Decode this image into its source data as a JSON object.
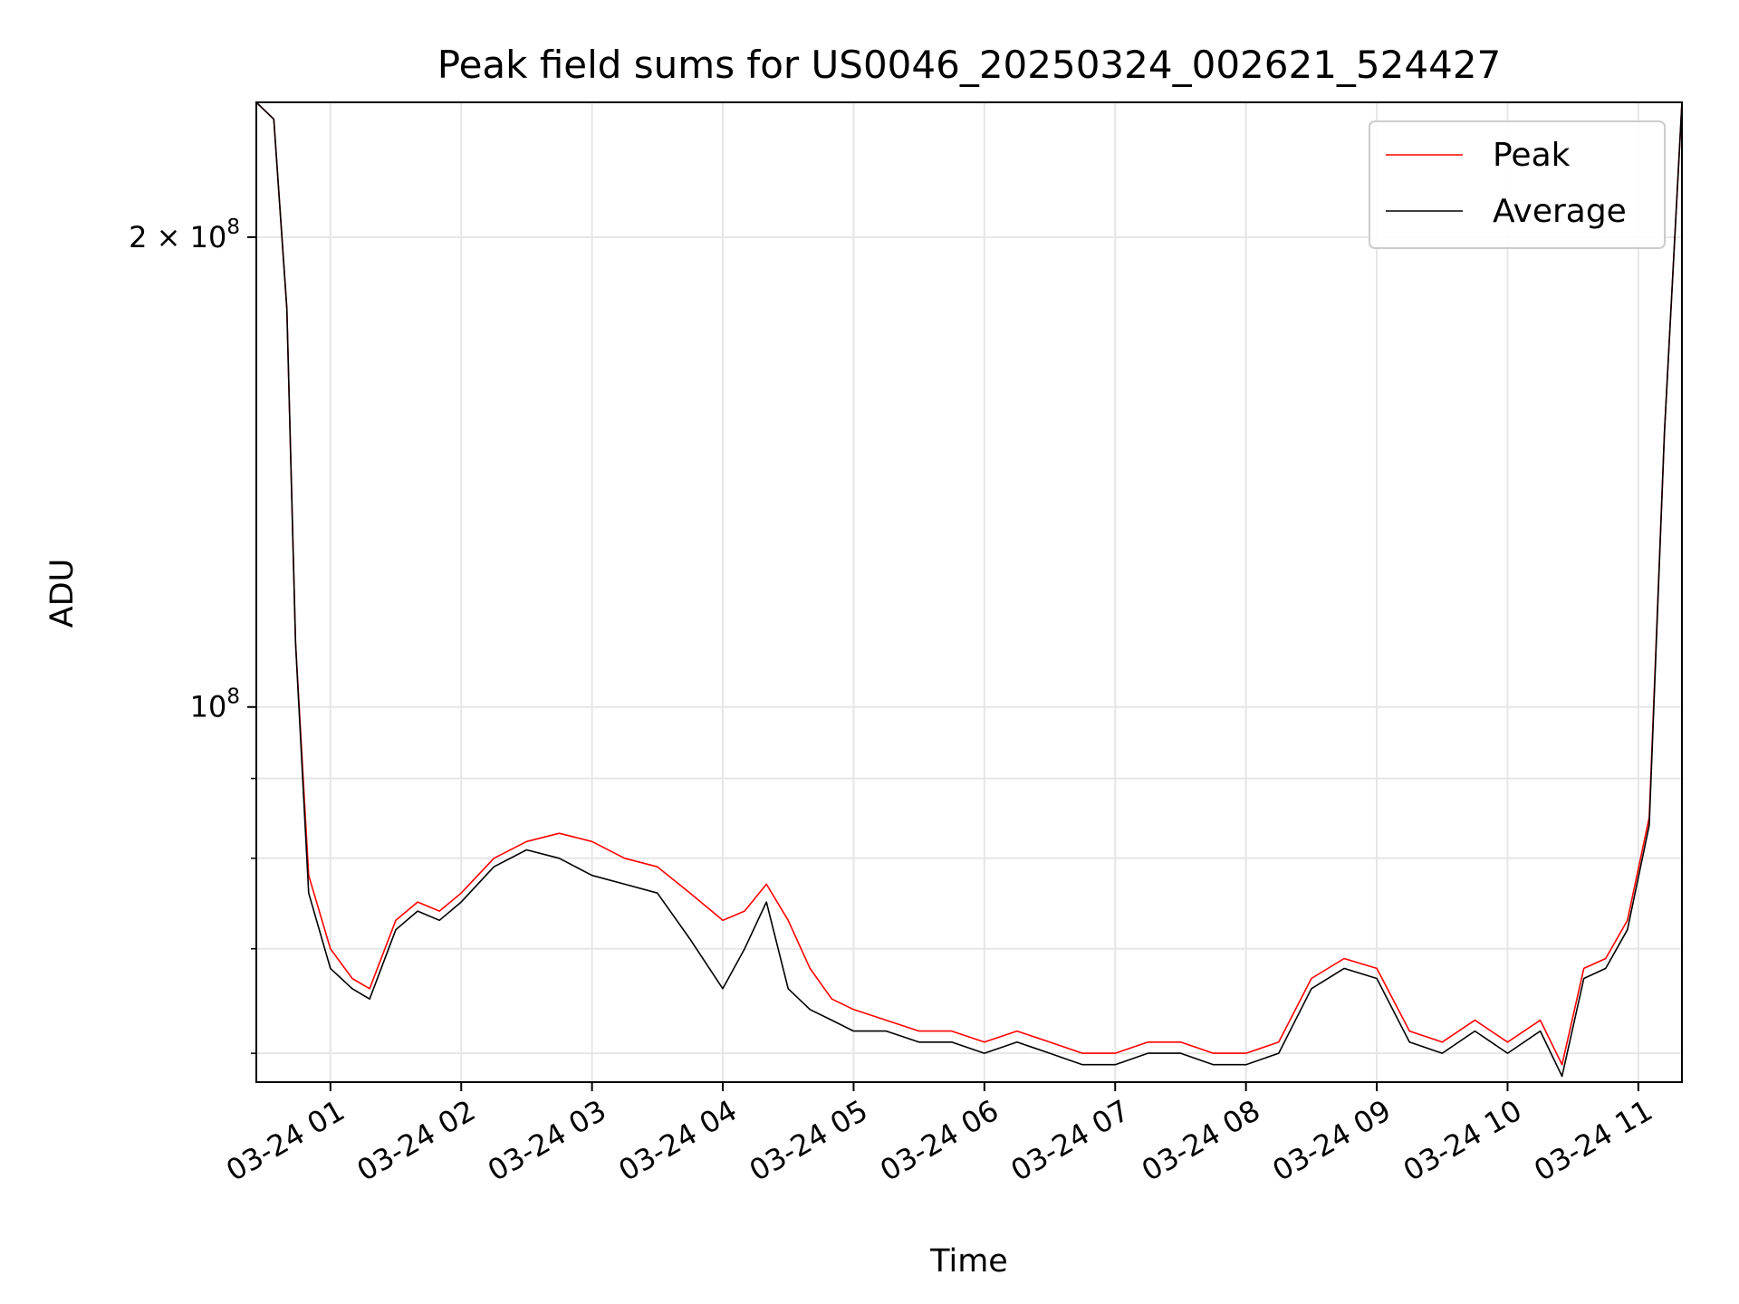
{
  "chart_data": {
    "type": "line",
    "title": "Peak field sums for US0046_20250324_002621_524427",
    "xlabel": "Time",
    "ylabel": "ADU",
    "yscale": "log",
    "ylim": [
      57500000,
      244000000
    ],
    "xlim": [
      "03-24 00:26",
      "03-24 11:20"
    ],
    "x_ticks": [
      {
        "time": "03-24 01:00",
        "label": "03-24 01"
      },
      {
        "time": "03-24 02:00",
        "label": "03-24 02"
      },
      {
        "time": "03-24 03:00",
        "label": "03-24 03"
      },
      {
        "time": "03-24 04:00",
        "label": "03-24 04"
      },
      {
        "time": "03-24 05:00",
        "label": "03-24 05"
      },
      {
        "time": "03-24 06:00",
        "label": "03-24 06"
      },
      {
        "time": "03-24 07:00",
        "label": "03-24 07"
      },
      {
        "time": "03-24 08:00",
        "label": "03-24 08"
      },
      {
        "time": "03-24 09:00",
        "label": "03-24 09"
      },
      {
        "time": "03-24 10:00",
        "label": "03-24 10"
      },
      {
        "time": "03-24 11:00",
        "label": "03-24 11"
      }
    ],
    "y_major_ticks": [
      {
        "value": 100000000,
        "mantissa": "",
        "base": "10",
        "exp": "8"
      },
      {
        "value": 200000000,
        "mantissa": "2 × ",
        "base": "10",
        "exp": "8"
      }
    ],
    "y_minor_ticks": [
      60000000,
      70000000,
      80000000,
      90000000
    ],
    "grid": true,
    "legend": {
      "placement": "top-right"
    },
    "series": [
      {
        "name": "Peak",
        "color": "#ff0000",
        "x": [
          "03-24 00:26",
          "03-24 00:34",
          "03-24 00:40",
          "03-24 00:44",
          "03-24 00:50",
          "03-24 01:00",
          "03-24 01:10",
          "03-24 01:18",
          "03-24 01:30",
          "03-24 01:40",
          "03-24 01:50",
          "03-24 02:00",
          "03-24 02:15",
          "03-24 02:30",
          "03-24 02:45",
          "03-24 03:00",
          "03-24 03:15",
          "03-24 03:30",
          "03-24 03:45",
          "03-24 04:00",
          "03-24 04:10",
          "03-24 04:20",
          "03-24 04:30",
          "03-24 04:40",
          "03-24 04:50",
          "03-24 05:00",
          "03-24 05:15",
          "03-24 05:30",
          "03-24 05:45",
          "03-24 06:00",
          "03-24 06:15",
          "03-24 06:30",
          "03-24 06:45",
          "03-24 07:00",
          "03-24 07:15",
          "03-24 07:30",
          "03-24 07:45",
          "03-24 08:00",
          "03-24 08:15",
          "03-24 08:30",
          "03-24 08:45",
          "03-24 09:00",
          "03-24 09:15",
          "03-24 09:30",
          "03-24 09:45",
          "03-24 10:00",
          "03-24 10:15",
          "03-24 10:25",
          "03-24 10:35",
          "03-24 10:45",
          "03-24 10:55",
          "03-24 11:05",
          "03-24 11:12",
          "03-24 11:20"
        ],
        "y": [
          244000000,
          238000000,
          180000000,
          110000000,
          78000000,
          70000000,
          67000000,
          66000000,
          73000000,
          75000000,
          74000000,
          76000000,
          80000000,
          82000000,
          83000000,
          82000000,
          80000000,
          79000000,
          76000000,
          73000000,
          74000000,
          77000000,
          73000000,
          68000000,
          65000000,
          64000000,
          63000000,
          62000000,
          62000000,
          61000000,
          62000000,
          61000000,
          60000000,
          60000000,
          61000000,
          61000000,
          60000000,
          60000000,
          61000000,
          67000000,
          69000000,
          68000000,
          62000000,
          61000000,
          63000000,
          61000000,
          63000000,
          59000000,
          68000000,
          69000000,
          73000000,
          85000000,
          150000000,
          244000000
        ]
      },
      {
        "name": "Average",
        "color": "#000000",
        "x": [
          "03-24 00:26",
          "03-24 00:34",
          "03-24 00:40",
          "03-24 00:44",
          "03-24 00:50",
          "03-24 01:00",
          "03-24 01:10",
          "03-24 01:18",
          "03-24 01:30",
          "03-24 01:40",
          "03-24 01:50",
          "03-24 02:00",
          "03-24 02:15",
          "03-24 02:30",
          "03-24 02:45",
          "03-24 03:00",
          "03-24 03:15",
          "03-24 03:30",
          "03-24 03:45",
          "03-24 04:00",
          "03-24 04:10",
          "03-24 04:20",
          "03-24 04:30",
          "03-24 04:40",
          "03-24 04:50",
          "03-24 05:00",
          "03-24 05:15",
          "03-24 05:30",
          "03-24 05:45",
          "03-24 06:00",
          "03-24 06:15",
          "03-24 06:30",
          "03-24 06:45",
          "03-24 07:00",
          "03-24 07:15",
          "03-24 07:30",
          "03-24 07:45",
          "03-24 08:00",
          "03-24 08:15",
          "03-24 08:30",
          "03-24 08:45",
          "03-24 09:00",
          "03-24 09:15",
          "03-24 09:30",
          "03-24 09:45",
          "03-24 10:00",
          "03-24 10:15",
          "03-24 10:25",
          "03-24 10:35",
          "03-24 10:45",
          "03-24 10:55",
          "03-24 11:05",
          "03-24 11:12",
          "03-24 11:20"
        ],
        "y": [
          244000000,
          238000000,
          180000000,
          110000000,
          76000000,
          68000000,
          66000000,
          65000000,
          72000000,
          74000000,
          73000000,
          75000000,
          79000000,
          81000000,
          80000000,
          78000000,
          77000000,
          76000000,
          71000000,
          66000000,
          70000000,
          75000000,
          66000000,
          64000000,
          63000000,
          62000000,
          62000000,
          61000000,
          61000000,
          60000000,
          61000000,
          60000000,
          59000000,
          59000000,
          60000000,
          60000000,
          59000000,
          59000000,
          60000000,
          66000000,
          68000000,
          67000000,
          61000000,
          60000000,
          62000000,
          60000000,
          62000000,
          58000000,
          67000000,
          68000000,
          72000000,
          84000000,
          150000000,
          244000000
        ]
      }
    ]
  }
}
